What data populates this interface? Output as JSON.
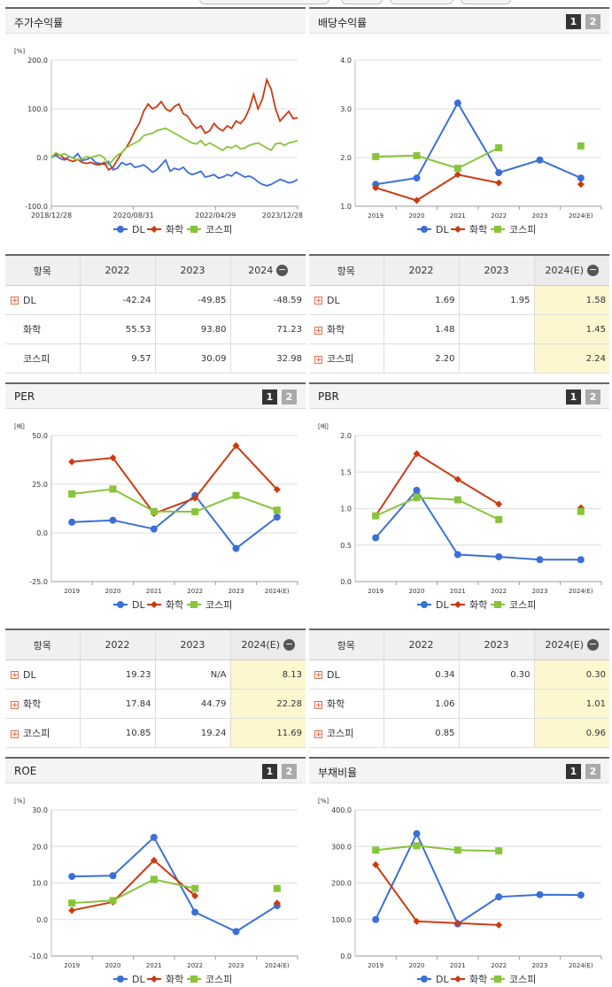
{
  "colors": {
    "dl": "#3a6fd8",
    "chem": "#cc3a10",
    "kospi": "#88c43a"
  },
  "legend": [
    "DL",
    "화학",
    "코스피"
  ],
  "panels": {
    "stock": {
      "title": "주가수익률"
    },
    "div": {
      "title": "배당수익률",
      "btn1": "1",
      "btn2": "2"
    },
    "per": {
      "title": "PER",
      "btn1": "1",
      "btn2": "2"
    },
    "pbr": {
      "title": "PBR",
      "btn1": "1",
      "btn2": "2"
    },
    "roe": {
      "title": "ROE",
      "btn1": "1",
      "btn2": "2"
    },
    "debt": {
      "title": "부채비율",
      "btn1": "1",
      "btn2": "2"
    }
  },
  "tables": {
    "stock": {
      "headers": [
        "항목",
        "2022",
        "2023",
        "2024"
      ],
      "rows": [
        {
          "name": "DL",
          "v": [
            "-42.24",
            "-49.85",
            "-48.59"
          ]
        },
        {
          "name": "화학",
          "v": [
            "55.53",
            "93.80",
            "71.23"
          ]
        },
        {
          "name": "코스피",
          "v": [
            "9.57",
            "30.09",
            "32.98"
          ]
        }
      ]
    },
    "div": {
      "headers": [
        "항목",
        "2022",
        "2023",
        "2024(E)"
      ],
      "rows": [
        {
          "name": "DL",
          "v": [
            "1.69",
            "1.95",
            "1.58"
          ]
        },
        {
          "name": "화학",
          "v": [
            "1.48",
            "",
            "1.45"
          ]
        },
        {
          "name": "코스피",
          "v": [
            "2.20",
            "",
            "2.24"
          ]
        }
      ]
    },
    "per": {
      "headers": [
        "항목",
        "2022",
        "2023",
        "2024(E)"
      ],
      "rows": [
        {
          "name": "DL",
          "v": [
            "19.23",
            "N/A",
            "8.13"
          ]
        },
        {
          "name": "화학",
          "v": [
            "17.84",
            "44.79",
            "22.28"
          ]
        },
        {
          "name": "코스피",
          "v": [
            "10.85",
            "19.24",
            "11.69"
          ]
        }
      ]
    },
    "pbr": {
      "headers": [
        "항목",
        "2022",
        "2023",
        "2024(E)"
      ],
      "rows": [
        {
          "name": "DL",
          "v": [
            "0.34",
            "0.30",
            "0.30"
          ]
        },
        {
          "name": "화학",
          "v": [
            "1.06",
            "",
            "1.01"
          ]
        },
        {
          "name": "코스피",
          "v": [
            "0.85",
            "",
            "0.96"
          ]
        }
      ]
    }
  },
  "chart_data": [
    {
      "id": "stock",
      "type": "line",
      "ylabel": "[%]",
      "ylim": [
        -100,
        200
      ],
      "yticks": [
        "200.0",
        "100.0",
        "0.0",
        "-100.0"
      ],
      "xticks": [
        "2018/12/28",
        "2020/08/31",
        "2022/04/29",
        "2023/12/28"
      ],
      "series": [
        {
          "name": "DL",
          "values": [
            0,
            5,
            -2,
            -5,
            2,
            -1,
            8,
            -6,
            -4,
            0,
            -10,
            -12,
            -14,
            -8,
            -25,
            -22,
            -10,
            -15,
            -12,
            -20,
            -18,
            -15,
            -22,
            -30,
            -25,
            -15,
            -5,
            -28,
            -22,
            -25,
            -20,
            -30,
            -35,
            -32,
            -28,
            -40,
            -38,
            -35,
            -42,
            -40,
            -35,
            -38,
            -30,
            -35,
            -40,
            -38,
            -42,
            -50,
            -55,
            -58,
            -55,
            -50,
            -45,
            -48,
            -52,
            -50,
            -45
          ]
        },
        {
          "name": "화학",
          "values": [
            0,
            8,
            5,
            -2,
            -5,
            -8,
            -4,
            -10,
            -12,
            -10,
            -14,
            -15,
            -10,
            -25,
            -20,
            -5,
            10,
            20,
            35,
            55,
            70,
            95,
            110,
            100,
            105,
            115,
            100,
            95,
            105,
            110,
            90,
            85,
            70,
            60,
            65,
            50,
            55,
            70,
            60,
            55,
            65,
            60,
            75,
            70,
            80,
            100,
            130,
            100,
            120,
            160,
            140,
            100,
            75,
            85,
            95,
            80,
            82
          ]
        },
        {
          "name": "코스피",
          "values": [
            0,
            10,
            5,
            8,
            3,
            -2,
            -5,
            -3,
            2,
            0,
            3,
            5,
            0,
            -15,
            -5,
            5,
            10,
            20,
            25,
            30,
            35,
            45,
            48,
            50,
            55,
            58,
            60,
            55,
            50,
            45,
            40,
            35,
            30,
            28,
            35,
            25,
            30,
            25,
            20,
            15,
            22,
            20,
            25,
            18,
            20,
            25,
            28,
            30,
            25,
            20,
            15,
            28,
            30,
            25,
            30,
            32,
            35
          ]
        }
      ]
    },
    {
      "id": "div",
      "type": "line",
      "ylim": [
        1,
        4
      ],
      "yticks": [
        "4.0",
        "3.0",
        "2.0",
        "1.0"
      ],
      "categories": [
        "2019",
        "2020",
        "2021",
        "2022",
        "2023",
        "2024(E)"
      ],
      "series": [
        {
          "name": "DL",
          "values": [
            1.45,
            1.58,
            3.12,
            1.69,
            1.95,
            1.58
          ]
        },
        {
          "name": "화학",
          "values": [
            1.38,
            1.12,
            1.65,
            1.48,
            null,
            1.45
          ]
        },
        {
          "name": "코스피",
          "values": [
            2.02,
            2.04,
            1.78,
            2.2,
            null,
            2.24
          ]
        }
      ]
    },
    {
      "id": "per",
      "type": "line",
      "ylabel": "[배]",
      "ylim": [
        -25,
        50
      ],
      "yticks": [
        "50.0",
        "25.0",
        "0.0",
        "-25.0"
      ],
      "categories": [
        "2019",
        "2020",
        "2021",
        "2022",
        "2023",
        "2024(E)"
      ],
      "series": [
        {
          "name": "DL",
          "values": [
            5.5,
            6.5,
            2,
            19.23,
            -8,
            8.13
          ]
        },
        {
          "name": "화학",
          "values": [
            36.5,
            38.5,
            10,
            17.84,
            44.79,
            22.28
          ]
        },
        {
          "name": "코스피",
          "values": [
            20,
            22.5,
            11,
            10.85,
            19.24,
            11.69
          ]
        }
      ]
    },
    {
      "id": "pbr",
      "type": "line",
      "ylabel": "[배]",
      "ylim": [
        0,
        2
      ],
      "yticks": [
        "2.0",
        "1.5",
        "1.0",
        "0.5",
        "0.0"
      ],
      "categories": [
        "2019",
        "2020",
        "2021",
        "2022",
        "2023",
        "2024(E)"
      ],
      "series": [
        {
          "name": "DL",
          "values": [
            0.6,
            1.25,
            0.37,
            0.34,
            0.3,
            0.3
          ]
        },
        {
          "name": "화학",
          "values": [
            0.9,
            1.75,
            1.4,
            1.06,
            null,
            1.01
          ]
        },
        {
          "name": "코스피",
          "values": [
            0.9,
            1.15,
            1.12,
            0.85,
            null,
            0.96
          ]
        }
      ]
    },
    {
      "id": "roe",
      "type": "line",
      "ylabel": "[%]",
      "ylim": [
        -10,
        30
      ],
      "yticks": [
        "30.0",
        "20.0",
        "10.0",
        "0.0",
        "-10.0"
      ],
      "categories": [
        "2019",
        "2020",
        "2021",
        "2022",
        "2023",
        "2024(E)"
      ],
      "series": [
        {
          "name": "DL",
          "values": [
            11.8,
            12,
            22.5,
            2,
            -3.3,
            3.8
          ]
        },
        {
          "name": "화학",
          "values": [
            2.5,
            4.8,
            16.2,
            6.5,
            null,
            4.5
          ]
        },
        {
          "name": "코스피",
          "values": [
            4.5,
            5.2,
            11,
            8.5,
            null,
            8.5
          ]
        }
      ]
    },
    {
      "id": "debt",
      "type": "line",
      "ylabel": "[%]",
      "ylim": [
        0,
        400
      ],
      "yticks": [
        "400.0",
        "300.0",
        "200.0",
        "100.0",
        "0.0"
      ],
      "categories": [
        "2019",
        "2020",
        "2021",
        "2022",
        "2023",
        "2024(E)"
      ],
      "series": [
        {
          "name": "DL",
          "values": [
            100,
            335,
            88,
            162,
            168,
            167
          ]
        },
        {
          "name": "화학",
          "values": [
            250,
            95,
            90,
            85,
            null,
            null
          ]
        },
        {
          "name": "코스피",
          "values": [
            290,
            302,
            290,
            288,
            null,
            null
          ]
        }
      ]
    }
  ]
}
